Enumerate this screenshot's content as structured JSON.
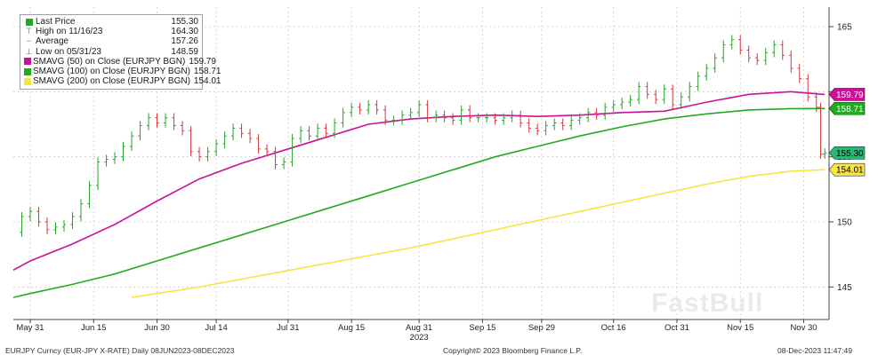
{
  "legend": {
    "rows": [
      {
        "label": "Last Price",
        "value": "155.30",
        "color": "#22aa22",
        "icon": "green-square-icon"
      },
      {
        "label": "High on 11/16/23",
        "value": "164.30",
        "icon": "high-marker-icon"
      },
      {
        "label": "Average",
        "value": "157.26",
        "icon": "average-marker-icon"
      },
      {
        "label": "Low on 05/31/23",
        "value": "148.59",
        "icon": "low-marker-icon"
      },
      {
        "label": "SMAVG (50)  on Close (EURJPY BGN)",
        "value": "159.79",
        "color": "#cc1199",
        "icon": "magenta-square-icon"
      },
      {
        "label": "SMAVG (100)  on Close (EURJPY BGN)",
        "value": "158.71",
        "color": "#22aa22",
        "icon": "green-square-icon"
      },
      {
        "label": "SMAVG (200)  on Close (EURJPY BGN)",
        "value": "154.01",
        "color": "#f5e642",
        "icon": "yellow-square-icon"
      }
    ]
  },
  "footer": {
    "left": "EURJPY Curncy (EUR-JPY X-RATE)  Daily 08JUN2023-08DEC2023",
    "center": "Copyright© 2023 Bloomberg Finance L.P.",
    "right": "08-Dec-2023 11:47:49"
  },
  "watermark": "FastBull",
  "chart_data": {
    "type": "line",
    "y_ticks": [
      145,
      150,
      155,
      160,
      165
    ],
    "ylim": [
      142.5,
      166.5
    ],
    "x_ticks": [
      {
        "label": "May 31",
        "day": 0
      },
      {
        "label": "Jun 15",
        "day": 15
      },
      {
        "label": "Jun 30",
        "day": 30
      },
      {
        "label": "Jul 14",
        "day": 44
      },
      {
        "label": "Jul 31",
        "day": 61
      },
      {
        "label": "Aug 15",
        "day": 76
      },
      {
        "label": "Aug 31",
        "day": 92
      },
      {
        "label": "Sep 15",
        "day": 107
      },
      {
        "label": "Sep 29",
        "day": 121
      },
      {
        "label": "Oct 16",
        "day": 138
      },
      {
        "label": "Oct 31",
        "day": 153
      },
      {
        "label": "Nov 15",
        "day": 168
      },
      {
        "label": "Nov 30",
        "day": 183
      }
    ],
    "year_label": "2023",
    "year_day": 92,
    "xlim": [
      -4,
      189
    ],
    "series": [
      {
        "name": "Last Price",
        "color": "#22aa22",
        "last_value": "155.30",
        "label_bg": "#2bb673",
        "points": [
          [
            -4,
            149.2
          ],
          [
            -2,
            150.4
          ],
          [
            0,
            150.8
          ],
          [
            2,
            150.0
          ],
          [
            4,
            149.4
          ],
          [
            6,
            149.6
          ],
          [
            8,
            149.8
          ],
          [
            10,
            150.4
          ],
          [
            12,
            151.4
          ],
          [
            14,
            152.8
          ],
          [
            16,
            154.6
          ],
          [
            18,
            154.8
          ],
          [
            20,
            155.0
          ],
          [
            22,
            155.8
          ],
          [
            24,
            156.6
          ],
          [
            26,
            157.4
          ],
          [
            28,
            158.0
          ],
          [
            30,
            157.6
          ],
          [
            32,
            158.0
          ],
          [
            34,
            157.4
          ],
          [
            36,
            157.0
          ],
          [
            38,
            155.4
          ],
          [
            40,
            155.0
          ],
          [
            42,
            155.4
          ],
          [
            44,
            156.0
          ],
          [
            46,
            156.6
          ],
          [
            48,
            157.2
          ],
          [
            50,
            156.8
          ],
          [
            52,
            156.4
          ],
          [
            54,
            155.6
          ],
          [
            56,
            155.4
          ],
          [
            58,
            154.4
          ],
          [
            60,
            154.6
          ],
          [
            62,
            156.4
          ],
          [
            64,
            157.0
          ],
          [
            66,
            156.6
          ],
          [
            68,
            157.2
          ],
          [
            70,
            156.8
          ],
          [
            72,
            157.6
          ],
          [
            74,
            158.4
          ],
          [
            76,
            158.8
          ],
          [
            78,
            158.6
          ],
          [
            80,
            159.0
          ],
          [
            82,
            158.6
          ],
          [
            84,
            157.8
          ],
          [
            86,
            157.8
          ],
          [
            88,
            158.2
          ],
          [
            90,
            158.4
          ],
          [
            92,
            159.0
          ],
          [
            94,
            158.0
          ],
          [
            96,
            158.2
          ],
          [
            98,
            158.0
          ],
          [
            100,
            157.8
          ],
          [
            102,
            158.6
          ],
          [
            104,
            158.0
          ],
          [
            106,
            158.0
          ],
          [
            108,
            158.0
          ],
          [
            110,
            157.8
          ],
          [
            112,
            158.0
          ],
          [
            114,
            158.2
          ],
          [
            116,
            157.6
          ],
          [
            118,
            157.2
          ],
          [
            120,
            157.0
          ],
          [
            122,
            157.4
          ],
          [
            124,
            157.6
          ],
          [
            126,
            157.4
          ],
          [
            128,
            157.8
          ],
          [
            130,
            158.0
          ],
          [
            132,
            158.4
          ],
          [
            134,
            158.2
          ],
          [
            136,
            158.8
          ],
          [
            138,
            159.0
          ],
          [
            140,
            159.2
          ],
          [
            142,
            159.4
          ],
          [
            144,
            160.4
          ],
          [
            146,
            159.8
          ],
          [
            148,
            159.4
          ],
          [
            150,
            160.2
          ],
          [
            152,
            159.0
          ],
          [
            154,
            159.6
          ],
          [
            156,
            160.4
          ],
          [
            158,
            161.2
          ],
          [
            160,
            161.8
          ],
          [
            162,
            162.6
          ],
          [
            164,
            163.6
          ],
          [
            166,
            164.0
          ],
          [
            168,
            163.2
          ],
          [
            170,
            162.6
          ],
          [
            172,
            162.4
          ],
          [
            174,
            163.0
          ],
          [
            176,
            163.6
          ],
          [
            178,
            162.8
          ],
          [
            180,
            161.8
          ],
          [
            182,
            161.0
          ],
          [
            184,
            159.6
          ],
          [
            186,
            158.8
          ],
          [
            187,
            155.2
          ],
          [
            188,
            155.3
          ]
        ]
      },
      {
        "name": "SMAVG (50)  on Close (EURJPY BGN)",
        "color": "#cc1199",
        "last_value": "159.79",
        "label_bg": "#cc1199",
        "points": [
          [
            -4,
            146.3
          ],
          [
            0,
            147.0
          ],
          [
            10,
            148.3
          ],
          [
            20,
            149.8
          ],
          [
            30,
            151.6
          ],
          [
            40,
            153.3
          ],
          [
            50,
            154.5
          ],
          [
            60,
            155.5
          ],
          [
            70,
            156.5
          ],
          [
            80,
            157.5
          ],
          [
            90,
            157.9
          ],
          [
            100,
            158.1
          ],
          [
            110,
            158.2
          ],
          [
            120,
            158.1
          ],
          [
            130,
            158.2
          ],
          [
            140,
            158.4
          ],
          [
            150,
            158.5
          ],
          [
            160,
            159.2
          ],
          [
            170,
            159.8
          ],
          [
            180,
            160.0
          ],
          [
            188,
            159.79
          ]
        ]
      },
      {
        "name": "SMAVG (100)  on Close (EURJPY BGN)",
        "color": "#22aa22",
        "last_value": "158.71",
        "label_bg": "#22aa22",
        "points": [
          [
            -4,
            144.2
          ],
          [
            0,
            144.5
          ],
          [
            10,
            145.2
          ],
          [
            20,
            146.0
          ],
          [
            30,
            147.0
          ],
          [
            40,
            148.0
          ],
          [
            50,
            149.0
          ],
          [
            60,
            150.0
          ],
          [
            70,
            151.0
          ],
          [
            80,
            152.0
          ],
          [
            90,
            153.0
          ],
          [
            100,
            154.0
          ],
          [
            110,
            155.0
          ],
          [
            120,
            155.8
          ],
          [
            130,
            156.6
          ],
          [
            140,
            157.3
          ],
          [
            150,
            157.9
          ],
          [
            160,
            158.3
          ],
          [
            170,
            158.6
          ],
          [
            180,
            158.7
          ],
          [
            188,
            158.71
          ]
        ]
      },
      {
        "name": "SMAVG (200)  on Close (EURJPY BGN)",
        "color": "#f5e642",
        "last_value": "154.01",
        "label_bg": "#f5e642",
        "points": [
          [
            24,
            144.2
          ],
          [
            30,
            144.5
          ],
          [
            40,
            145.0
          ],
          [
            50,
            145.6
          ],
          [
            60,
            146.2
          ],
          [
            70,
            146.8
          ],
          [
            80,
            147.4
          ],
          [
            90,
            148.0
          ],
          [
            100,
            148.7
          ],
          [
            110,
            149.4
          ],
          [
            120,
            150.1
          ],
          [
            130,
            150.8
          ],
          [
            140,
            151.5
          ],
          [
            150,
            152.2
          ],
          [
            160,
            152.9
          ],
          [
            170,
            153.5
          ],
          [
            180,
            153.9
          ],
          [
            188,
            154.01
          ]
        ]
      }
    ]
  }
}
